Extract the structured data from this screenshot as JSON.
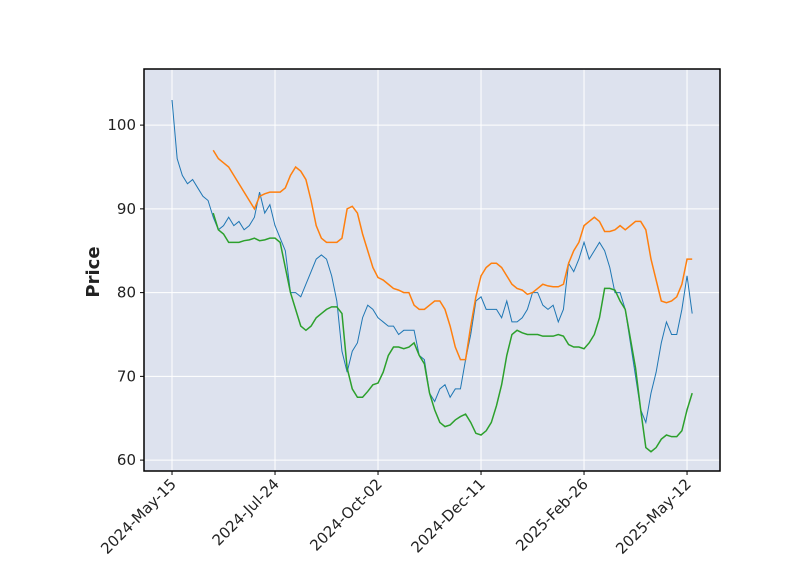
{
  "chart_data": {
    "type": "line",
    "ylabel": "Price",
    "categories": [
      "2024-May-15",
      null,
      null,
      null,
      null,
      null,
      null,
      null,
      null,
      null,
      null,
      null,
      null,
      null,
      null,
      null,
      null,
      null,
      null,
      null,
      "2024-Jul-24",
      null,
      null,
      null,
      null,
      null,
      null,
      null,
      null,
      null,
      null,
      null,
      null,
      null,
      null,
      null,
      null,
      null,
      null,
      null,
      "2024-Oct-02",
      null,
      null,
      null,
      null,
      null,
      null,
      null,
      null,
      null,
      null,
      null,
      null,
      null,
      null,
      null,
      null,
      null,
      null,
      null,
      "2024-Dec-11",
      null,
      null,
      null,
      null,
      null,
      null,
      null,
      null,
      null,
      null,
      null,
      null,
      null,
      null,
      null,
      null,
      null,
      null,
      null,
      "2025-Feb-26",
      null,
      null,
      null,
      null,
      null,
      null,
      null,
      null,
      null,
      null,
      null,
      null,
      null,
      null,
      null,
      null,
      null,
      null,
      null,
      "2025-May-12",
      null
    ],
    "series": [
      {
        "color": "#1f77b4",
        "values": [
          103,
          96,
          94,
          93,
          93.5,
          92.5,
          91.5,
          91,
          89,
          87.5,
          88,
          89,
          88,
          88.5,
          87.5,
          88,
          89,
          92,
          89.5,
          90.5,
          88,
          86.5,
          85,
          80,
          80,
          79.5,
          81,
          82.5,
          84,
          84.5,
          84,
          82,
          79,
          73,
          70.5,
          73,
          74,
          77,
          78.5,
          78,
          77,
          76.5,
          76,
          76,
          75,
          75.5,
          75.5,
          75.5,
          72.5,
          72,
          68,
          67,
          68.5,
          69,
          67.5,
          68.5,
          68.5,
          72,
          75,
          79,
          79.5,
          78,
          78,
          78,
          77,
          79,
          76.5,
          76.5,
          77,
          78,
          80,
          80,
          78.5,
          78,
          78.5,
          76.5,
          78,
          83.5,
          82.5,
          84,
          86,
          84,
          85,
          86,
          85,
          83,
          80,
          80,
          78,
          74,
          70,
          66,
          64.5,
          68,
          70.5,
          74,
          76.5,
          75,
          75,
          78,
          82,
          77.5
        ]
      },
      {
        "color": "#ff7f0e",
        "values": [
          null,
          null,
          null,
          null,
          null,
          null,
          null,
          null,
          97,
          96,
          95.5,
          95,
          94,
          93,
          92,
          91,
          90,
          91.5,
          91.8,
          92,
          92,
          92,
          92.5,
          94,
          95,
          94.5,
          93.5,
          91,
          88,
          86.5,
          86,
          86,
          86,
          86.5,
          90,
          90.3,
          89.5,
          87,
          85,
          83,
          81.8,
          81.5,
          81,
          80.5,
          80.3,
          80,
          80,
          78.5,
          78,
          78,
          78.5,
          79,
          79,
          78,
          76,
          73.5,
          72,
          72,
          76,
          79.5,
          82,
          83,
          83.5,
          83.5,
          83,
          82,
          81,
          80.5,
          80.3,
          79.8,
          80,
          80.5,
          81,
          80.8,
          80.7,
          80.7,
          81,
          83.5,
          85,
          86,
          88,
          88.5,
          89,
          88.5,
          87.3,
          87.3,
          87.5,
          88,
          87.5,
          88,
          88.5,
          88.5,
          87.5,
          84,
          81.5,
          79,
          78.8,
          79,
          79.5,
          81,
          84,
          84
        ]
      },
      {
        "color": "#2ca02c",
        "values": [
          null,
          null,
          null,
          null,
          null,
          null,
          null,
          null,
          89.5,
          87.5,
          87,
          86,
          86,
          86,
          86.2,
          86.3,
          86.5,
          86.2,
          86.3,
          86.5,
          86.5,
          86,
          83,
          80,
          78,
          76,
          75.5,
          76,
          77,
          77.5,
          78,
          78.3,
          78.3,
          77.5,
          71,
          68.5,
          67.5,
          67.5,
          68.2,
          69,
          69.2,
          70.5,
          72.5,
          73.5,
          73.5,
          73.3,
          73.5,
          74,
          72.5,
          71.5,
          68,
          66,
          64.5,
          64,
          64.2,
          64.8,
          65.2,
          65.5,
          64.5,
          63.2,
          63,
          63.5,
          64.5,
          66.5,
          69,
          72.5,
          75,
          75.5,
          75.2,
          75,
          75,
          75,
          74.8,
          74.8,
          74.8,
          75,
          74.8,
          73.8,
          73.5,
          73.5,
          73.3,
          74,
          75,
          77,
          80.5,
          80.5,
          80.3,
          79,
          78,
          74.5,
          71,
          66,
          61.5,
          61,
          61.5,
          62.5,
          63,
          62.8,
          62.8,
          63.5,
          66,
          68
        ]
      }
    ],
    "xlim": [
      -5.44,
      106.4
    ],
    "ylim": [
      58.7,
      106.7
    ],
    "yticks": [
      60,
      70,
      80,
      90,
      100
    ],
    "grid": true
  }
}
